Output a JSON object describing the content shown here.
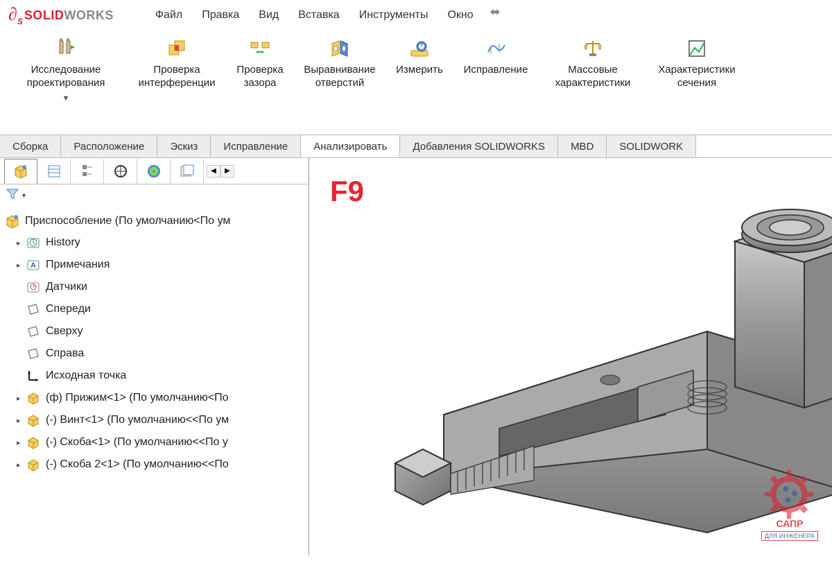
{
  "logo": {
    "d": "DS",
    "solid": "SOLID",
    "works": "WORKS"
  },
  "menu": [
    "Файл",
    "Правка",
    "Вид",
    "Вставка",
    "Инструменты",
    "Окно"
  ],
  "ribbon": [
    {
      "label": "Исследование\nпроектирования",
      "icon": "design-study",
      "dropdown": true
    },
    {
      "label": "Проверка\nинтерференции",
      "icon": "interference"
    },
    {
      "label": "Проверка\nзазора",
      "icon": "clearance"
    },
    {
      "label": "Выравнивание\nотверстий",
      "icon": "hole-align"
    },
    {
      "label": "Измерить",
      "icon": "measure"
    },
    {
      "label": "Исправление",
      "icon": "deviation"
    },
    {
      "label": "Массовые\nхарактеристики",
      "icon": "mass-props"
    },
    {
      "label": "Характеристики\nсечения",
      "icon": "section-props"
    }
  ],
  "tabs": [
    {
      "label": "Сборка",
      "active": false
    },
    {
      "label": "Расположение",
      "active": false
    },
    {
      "label": "Эскиз",
      "active": false
    },
    {
      "label": "Исправление",
      "active": false
    },
    {
      "label": "Анализировать",
      "active": true
    },
    {
      "label": "Добавления SOLIDWORKS",
      "active": false
    },
    {
      "label": "MBD",
      "active": false
    },
    {
      "label": "SOLIDWORK",
      "active": false
    }
  ],
  "tree_root": "Приспособление  (По умолчанию<По ум",
  "tree": [
    {
      "exp": true,
      "icon": "history",
      "label": "History"
    },
    {
      "exp": true,
      "icon": "notes",
      "label": "Примечания"
    },
    {
      "exp": false,
      "icon": "sensors",
      "label": "Датчики"
    },
    {
      "exp": false,
      "icon": "plane",
      "label": "Спереди"
    },
    {
      "exp": false,
      "icon": "plane",
      "label": "Сверху"
    },
    {
      "exp": false,
      "icon": "plane",
      "label": "Справа"
    },
    {
      "exp": false,
      "icon": "origin",
      "label": "Исходная точка"
    },
    {
      "exp": true,
      "icon": "part",
      "label": "(ф) Прижим<1> (По умолчанию<По"
    },
    {
      "exp": true,
      "icon": "part",
      "label": "(-) Винт<1> (По умолчанию<<По ум"
    },
    {
      "exp": true,
      "icon": "part",
      "label": "(-) Скоба<1> (По умолчанию<<По у"
    },
    {
      "exp": true,
      "icon": "part",
      "label": "(-) Скоба 2<1> (По умолчанию<<По"
    }
  ],
  "viewport": {
    "annotation": "F9"
  },
  "watermark": {
    "line1": "САПР",
    "line2": "ДЛЯ ИНЖЕНЕРА"
  },
  "colors": {
    "brand_red": "#d92231",
    "f9_red": "#e8252f",
    "gray": "#898989",
    "border": "#bbbbbb",
    "tab_bg": "#ededed"
  }
}
